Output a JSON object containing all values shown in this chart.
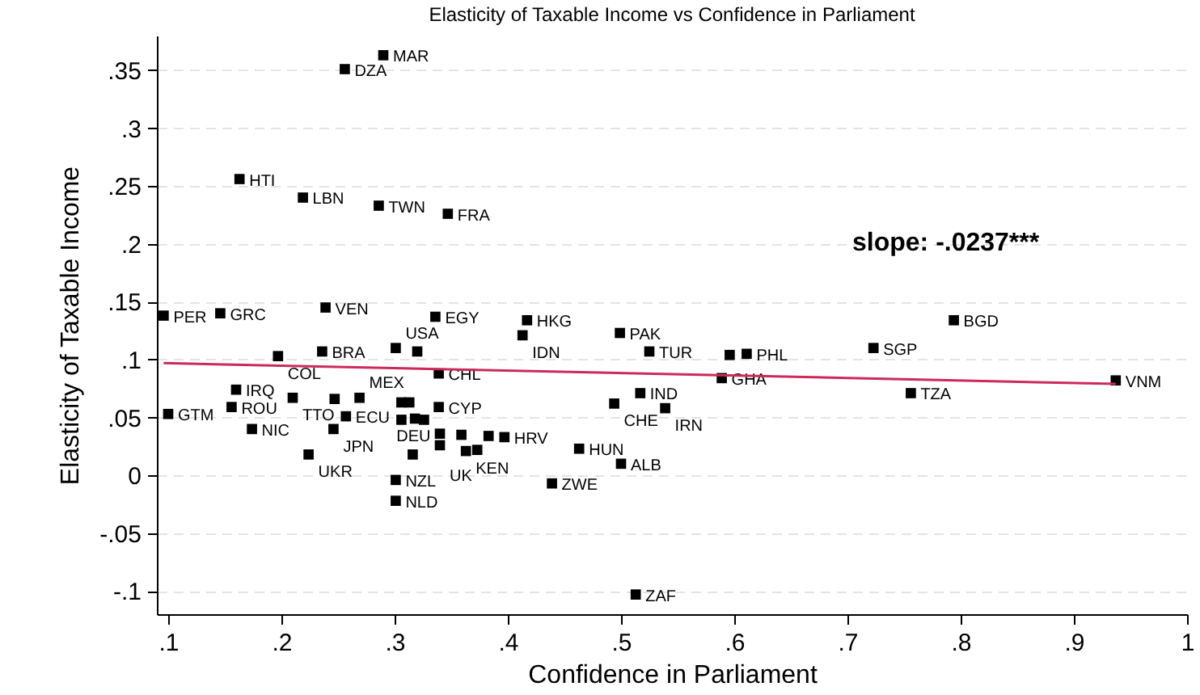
{
  "chart_data": {
    "type": "scatter",
    "title": "Elasticity of Taxable Income vs Confidence in Parliament",
    "xlabel": "Confidence in Parliament",
    "ylabel": "Elasticity of Taxable Income",
    "annotations": [
      "slope: -.0237***"
    ],
    "xlim": [
      0.09,
      1.0
    ],
    "xticks": [
      {
        "value": 0.1,
        "label": ".1"
      },
      {
        "value": 0.2,
        "label": ".2"
      },
      {
        "value": 0.3,
        "label": ".3"
      },
      {
        "value": 0.4,
        "label": ".4"
      },
      {
        "value": 0.5,
        "label": ".5"
      },
      {
        "value": 0.6,
        "label": ".6"
      },
      {
        "value": 0.7,
        "label": ".7"
      },
      {
        "value": 0.8,
        "label": ".8"
      },
      {
        "value": 0.9,
        "label": ".9"
      },
      1
    ],
    "ylim": [
      -0.12,
      0.38
    ],
    "yticks": [
      {
        "value": -0.1,
        "label": "-.1"
      },
      {
        "value": -0.05,
        "label": "-.05"
      },
      0,
      {
        "value": 0.05,
        "label": ".05"
      },
      {
        "value": 0.1,
        "label": ".1"
      },
      {
        "value": 0.15,
        "label": ".15"
      },
      {
        "value": 0.2,
        "label": ".2"
      },
      {
        "value": 0.25,
        "label": ".25"
      },
      {
        "value": 0.3,
        "label": ".3"
      },
      {
        "value": 0.35,
        "label": ".35"
      }
    ],
    "grid": "y",
    "legend": false,
    "series": [
      {
        "color": "#000000",
        "marker": "square",
        "x": [
          0.29,
          0.256,
          0.163,
          0.219,
          0.286,
          0.347,
          0.096,
          0.146,
          0.239,
          0.336,
          0.417,
          0.413,
          0.499,
          0.794,
          0.723,
          0.525,
          0.596,
          0.611,
          0.301,
          0.32,
          0.197,
          0.236,
          0.339,
          0.589,
          0.937,
          0.756,
          0.517,
          0.16,
          0.21,
          0.247,
          0.269,
          0.306,
          0.313,
          0.339,
          0.494,
          0.539,
          0.1,
          0.156,
          0.257,
          0.306,
          0.318,
          0.326,
          0.174,
          0.246,
          0.34,
          0.359,
          0.383,
          0.397,
          0.34,
          0.363,
          0.373,
          0.463,
          0.224,
          0.316,
          0.5,
          0.301,
          0.301,
          0.439,
          0.513
        ],
        "values": [
          0.363,
          0.351,
          0.256,
          0.24,
          0.233,
          0.226,
          0.138,
          0.14,
          0.145,
          0.137,
          0.134,
          0.121,
          0.123,
          0.134,
          0.11,
          0.107,
          0.104,
          0.105,
          0.11,
          0.107,
          0.103,
          0.107,
          0.088,
          0.084,
          0.082,
          0.071,
          0.071,
          0.074,
          0.067,
          0.066,
          0.067,
          0.063,
          0.063,
          0.059,
          0.062,
          0.058,
          0.053,
          0.059,
          0.051,
          0.048,
          0.049,
          0.048,
          0.04,
          0.04,
          0.036,
          0.035,
          0.034,
          0.033,
          0.026,
          0.021,
          0.022,
          0.023,
          0.018,
          0.018,
          0.01,
          -0.004,
          -0.022,
          -0.007,
          -0.103
        ],
        "value_labels": [
          "MAR",
          "DZA",
          "HTI",
          "LBN",
          "TWN",
          "FRA",
          "PER",
          "GRC",
          "VEN",
          "EGY",
          "HKG",
          "IDN",
          "PAK",
          "BGD",
          "SGP",
          "TUR",
          null,
          "PHL",
          "USA",
          null,
          "COL",
          "BRA",
          "CHL",
          "GHA",
          "VNM",
          "TZA",
          "IND",
          "IRQ",
          "TTO",
          null,
          "MEX",
          null,
          null,
          "CYP",
          "CHE",
          "IRN",
          "GTM",
          "ROU",
          "ECU",
          null,
          null,
          null,
          "NIC",
          "JPN",
          null,
          null,
          null,
          "HRV",
          "UK",
          "KEN",
          null,
          "HUN",
          "UKR",
          "DEU",
          "ALB",
          "NZL",
          "NLD",
          "ZWE",
          "ZAF"
        ]
      },
      {
        "type": "line",
        "color": "#cc2a5a",
        "x": [
          0.096,
          0.937
        ],
        "values": [
          0.097,
          0.079
        ]
      }
    ]
  }
}
